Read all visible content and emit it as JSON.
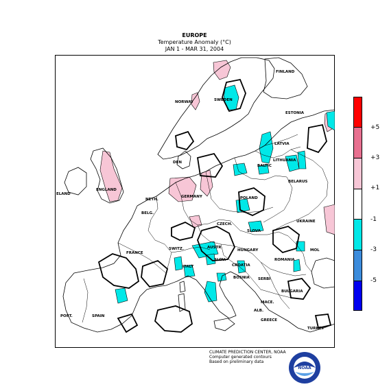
{
  "header": {
    "region": "EUROPE",
    "variable": "Temperature Anomaly (°C)",
    "period": "JAN  1 - MAR 31, 2004"
  },
  "colors": {
    "plus_5_above": "#ff0000",
    "plus_3_to_5": "#e87090",
    "plus_1_to_3": "#f7c6d6",
    "neutral": "#ffffff",
    "minus_1_to_3": "#00e8e8",
    "minus_3_to_5": "#3c8cdc",
    "minus_5_below": "#0000f0"
  },
  "legend": {
    "ticks": [
      "+5",
      "+3",
      "+1",
      "-1",
      "-3",
      "-5"
    ]
  },
  "places": {
    "finland": "FINLAND",
    "norway": "NORWAY",
    "sweden": "SWEDEN",
    "estonia": "ESTONIA",
    "latvia": "LATVIA",
    "lithuania": "LITHUANIA",
    "baltic": "BALTIC",
    "belarus": "BELARUS",
    "denmark": "DEN",
    "england": "ENGLAND",
    "ireland": "ELAND",
    "netherlands": "NETH.",
    "belgium": "BELG.",
    "germany": "GERMANY",
    "poland": "POLAND",
    "czech": "CZECH.",
    "slovakia": "SLOVA",
    "ukraine": "UKRAINE",
    "france": "FRANCE",
    "switzerland": "SWITZ.",
    "austria": "AUSTR",
    "hungary": "HUNGARY",
    "slovenia": "SLOV.",
    "croatia": "CROATIA",
    "romania": "ROMANIA",
    "moldova": "MOL",
    "bosnia": "BOSNIA",
    "serbia": "SERBI",
    "italy": "ITALY",
    "bulgaria": "BULGARIA",
    "portugal": "PORT.",
    "spain": "SPAIN",
    "macedonia": "MACE.",
    "albania": "ALB.",
    "greece": "GREECE",
    "turkey": "TURKEY"
  },
  "credits": {
    "line1": "CLIMATE PREDICTION CENTER, NOAA",
    "line2": "Computer generated contours",
    "line3": "Based on preliminary data"
  },
  "logo": {
    "text": "NOAA"
  }
}
